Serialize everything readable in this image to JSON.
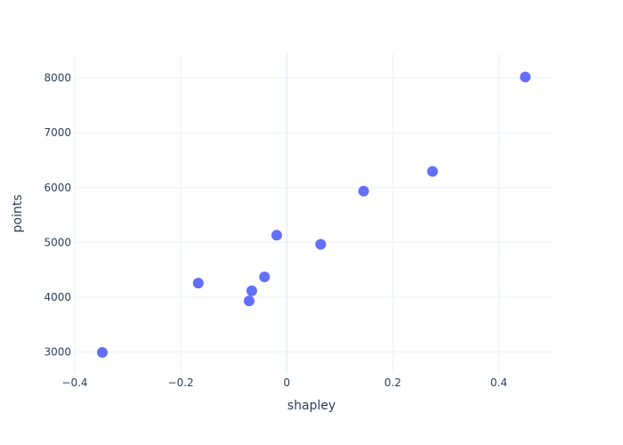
{
  "chart_data": {
    "type": "scatter",
    "title": "",
    "xlabel": "shapley",
    "ylabel": "points",
    "xlim": [
      -0.4,
      0.5
    ],
    "ylim": [
      2600,
      8450
    ],
    "grid": true,
    "marker_color": "#636efa",
    "grid_color": "#ebf0f8",
    "text_color": "#2a3f5f",
    "x_ticks": [
      {
        "value": -0.4,
        "label": "−0.4"
      },
      {
        "value": -0.2,
        "label": "−0.2"
      },
      {
        "value": 0,
        "label": "0"
      },
      {
        "value": 0.2,
        "label": "0.2"
      },
      {
        "value": 0.4,
        "label": "0.4"
      }
    ],
    "y_ticks": [
      {
        "value": 3000,
        "label": "3000"
      },
      {
        "value": 4000,
        "label": "4000"
      },
      {
        "value": 5000,
        "label": "5000"
      },
      {
        "value": 6000,
        "label": "6000"
      },
      {
        "value": 7000,
        "label": "7000"
      },
      {
        "value": 8000,
        "label": "8000"
      }
    ],
    "points": [
      {
        "x": -0.348,
        "y": 2990
      },
      {
        "x": -0.167,
        "y": 4255
      },
      {
        "x": -0.071,
        "y": 3930
      },
      {
        "x": -0.066,
        "y": 4115
      },
      {
        "x": -0.042,
        "y": 4370
      },
      {
        "x": -0.019,
        "y": 5130
      },
      {
        "x": 0.064,
        "y": 4965
      },
      {
        "x": 0.145,
        "y": 5935
      },
      {
        "x": 0.275,
        "y": 6295
      },
      {
        "x": 0.45,
        "y": 8020
      }
    ]
  }
}
